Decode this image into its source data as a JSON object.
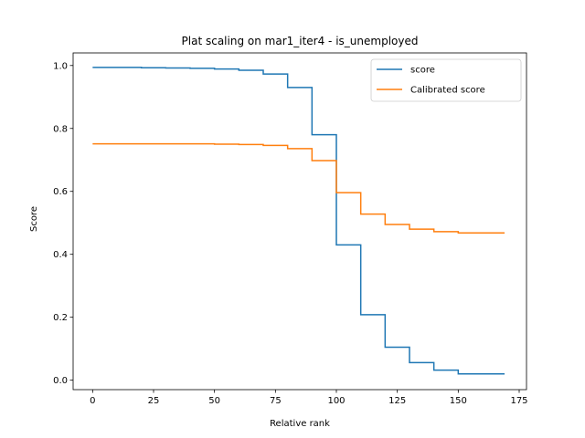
{
  "chart_data": {
    "type": "line",
    "title": "Plat scaling on mar1_iter4 - is_unemployed",
    "xlabel": "Relative rank",
    "ylabel": "Score",
    "xlim": [
      -8,
      178
    ],
    "ylim": [
      -0.03,
      1.04
    ],
    "xticks": [
      0,
      25,
      50,
      75,
      100,
      125,
      150,
      175
    ],
    "yticks": [
      0.0,
      0.2,
      0.4,
      0.6,
      0.8,
      1.0
    ],
    "xtick_labels": [
      "0",
      "25",
      "50",
      "75",
      "100",
      "125",
      "150",
      "175"
    ],
    "ytick_labels": [
      "0.0",
      "0.2",
      "0.4",
      "0.6",
      "0.8",
      "1.0"
    ],
    "legend_position": "upper right",
    "series": [
      {
        "name": "score",
        "color": "#1f77b4",
        "x": [
          0,
          10,
          20,
          30,
          40,
          50,
          60,
          70,
          80,
          90,
          100,
          110,
          120,
          130,
          140,
          150,
          160,
          169
        ],
        "y": [
          0.994,
          0.994,
          0.994,
          0.993,
          0.992,
          0.991,
          0.989,
          0.985,
          0.973,
          0.93,
          0.78,
          0.43,
          0.208,
          0.105,
          0.056,
          0.032,
          0.02,
          0.02
        ]
      },
      {
        "name": "Calibrated score",
        "color": "#ff7f0e",
        "x": [
          0,
          10,
          20,
          30,
          40,
          50,
          60,
          70,
          80,
          90,
          100,
          110,
          120,
          130,
          140,
          150,
          160,
          169
        ],
        "y": [
          0.751,
          0.751,
          0.751,
          0.751,
          0.751,
          0.751,
          0.75,
          0.749,
          0.746,
          0.736,
          0.698,
          0.596,
          0.528,
          0.495,
          0.48,
          0.472,
          0.468,
          0.468
        ]
      }
    ]
  }
}
